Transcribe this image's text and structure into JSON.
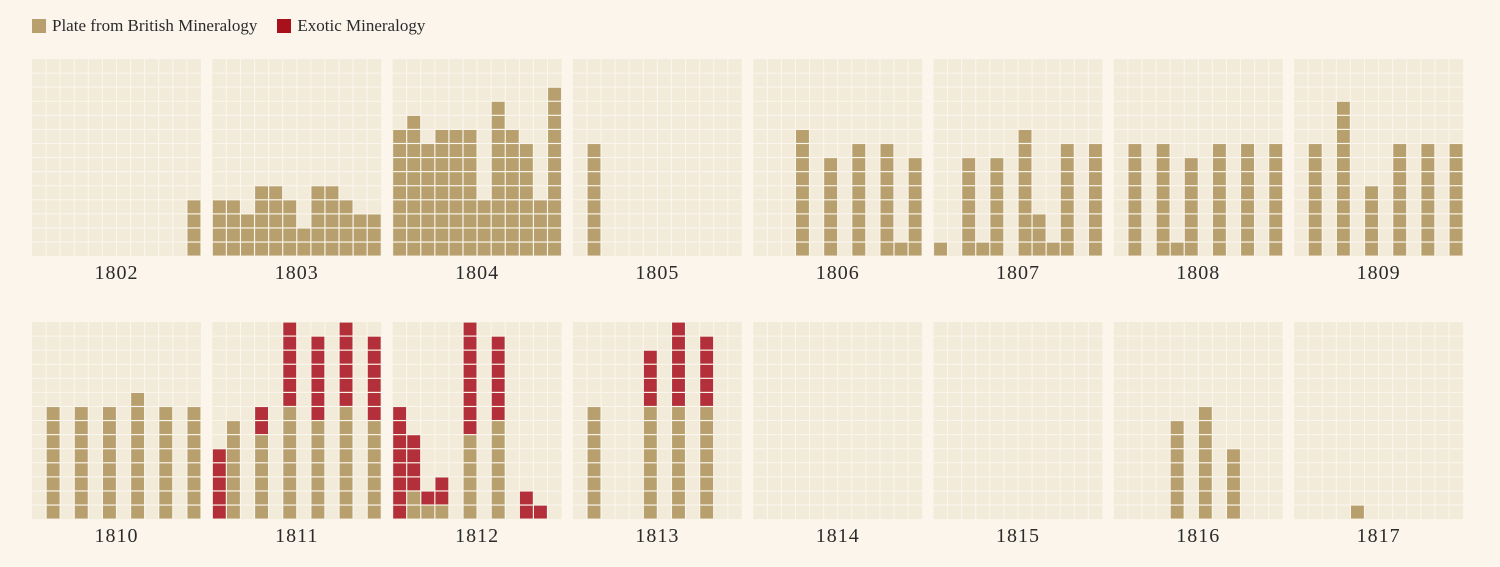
{
  "legend": {
    "british_label": "Plate from British Mineralogy",
    "exotic_label": "Exotic Mineralogy"
  },
  "colors": {
    "background": "#fbf5ec",
    "panel": "#f3ebda",
    "grid_line": "#fbf6ed",
    "british": "#b8a06e",
    "exotic": "#b3303a",
    "exotic_legend": "#a8111c"
  },
  "chart_data": {
    "type": "bar",
    "grid": true,
    "legend_position": "top-left",
    "units_per_panel_max": 14,
    "series": [
      {
        "name": "Plate from British Mineralogy"
      },
      {
        "name": "Exotic Mineralogy"
      }
    ],
    "panels": [
      {
        "year": "1802",
        "british": [
          0,
          0,
          0,
          0,
          0,
          0,
          0,
          0,
          0,
          0,
          0,
          4
        ],
        "exotic": [
          0,
          0,
          0,
          0,
          0,
          0,
          0,
          0,
          0,
          0,
          0,
          0
        ]
      },
      {
        "year": "1803",
        "british": [
          4,
          4,
          3,
          5,
          5,
          4,
          2,
          5,
          5,
          4,
          3,
          3
        ],
        "exotic": [
          0,
          0,
          0,
          0,
          0,
          0,
          0,
          0,
          0,
          0,
          0,
          0
        ]
      },
      {
        "year": "1804",
        "british": [
          9,
          10,
          8,
          9,
          9,
          9,
          4,
          11,
          9,
          8,
          4,
          12
        ],
        "exotic": [
          0,
          0,
          0,
          0,
          0,
          0,
          0,
          0,
          0,
          0,
          0,
          0
        ]
      },
      {
        "year": "1805",
        "british": [
          0,
          8,
          0,
          0,
          0,
          0,
          0,
          0,
          0,
          0,
          0,
          0
        ],
        "exotic": [
          0,
          0,
          0,
          0,
          0,
          0,
          0,
          0,
          0,
          0,
          0,
          0
        ]
      },
      {
        "year": "1806",
        "british": [
          0,
          0,
          0,
          9,
          0,
          7,
          0,
          8,
          0,
          8,
          1,
          7
        ],
        "exotic": [
          0,
          0,
          0,
          0,
          0,
          0,
          0,
          0,
          0,
          0,
          0,
          0
        ]
      },
      {
        "year": "1807",
        "british": [
          1,
          0,
          7,
          1,
          7,
          0,
          9,
          3,
          1,
          8,
          0,
          8
        ],
        "exotic": [
          0,
          0,
          0,
          0,
          0,
          0,
          0,
          0,
          0,
          0,
          0,
          0
        ]
      },
      {
        "year": "1808",
        "british": [
          0,
          8,
          0,
          8,
          1,
          7,
          0,
          8,
          0,
          8,
          0,
          8
        ],
        "exotic": [
          0,
          0,
          0,
          0,
          0,
          0,
          0,
          0,
          0,
          0,
          0,
          0
        ]
      },
      {
        "year": "1809",
        "british": [
          0,
          8,
          0,
          11,
          0,
          5,
          0,
          8,
          0,
          8,
          0,
          8
        ],
        "exotic": [
          0,
          0,
          0,
          0,
          0,
          0,
          0,
          0,
          0,
          0,
          0,
          0
        ]
      },
      {
        "year": "1810",
        "british": [
          0,
          8,
          0,
          8,
          0,
          8,
          0,
          9,
          0,
          8,
          0,
          8
        ],
        "exotic": [
          0,
          0,
          0,
          0,
          0,
          0,
          0,
          0,
          0,
          0,
          0,
          0
        ]
      },
      {
        "year": "1811",
        "british": [
          0,
          7,
          0,
          6,
          0,
          8,
          0,
          7,
          0,
          8,
          0,
          7
        ],
        "exotic": [
          5,
          0,
          0,
          2,
          0,
          6,
          0,
          6,
          0,
          6,
          0,
          6
        ]
      },
      {
        "year": "1812",
        "british": [
          0,
          2,
          1,
          1,
          0,
          6,
          0,
          7,
          0,
          0,
          0,
          0
        ],
        "exotic": [
          8,
          4,
          1,
          2,
          0,
          8,
          0,
          6,
          0,
          2,
          1,
          0
        ]
      },
      {
        "year": "1813",
        "british": [
          0,
          8,
          0,
          0,
          0,
          8,
          0,
          8,
          0,
          8,
          0,
          0
        ],
        "exotic": [
          0,
          0,
          0,
          0,
          0,
          4,
          0,
          6,
          0,
          5,
          0,
          0
        ]
      },
      {
        "year": "1814",
        "british": [
          0,
          0,
          0,
          0,
          0,
          0,
          0,
          0,
          0,
          0,
          0,
          0
        ],
        "exotic": [
          0,
          0,
          0,
          0,
          0,
          0,
          0,
          0,
          0,
          0,
          0,
          0
        ]
      },
      {
        "year": "1815",
        "british": [
          0,
          0,
          0,
          0,
          0,
          0,
          0,
          0,
          0,
          0,
          0,
          0
        ],
        "exotic": [
          0,
          0,
          0,
          0,
          0,
          0,
          0,
          0,
          0,
          0,
          0,
          0
        ]
      },
      {
        "year": "1816",
        "british": [
          0,
          0,
          0,
          0,
          7,
          0,
          8,
          0,
          5,
          0,
          0,
          0
        ],
        "exotic": [
          0,
          0,
          0,
          0,
          0,
          0,
          0,
          0,
          0,
          0,
          0,
          0
        ]
      },
      {
        "year": "1817",
        "british": [
          0,
          0,
          0,
          0,
          1,
          0,
          0,
          0,
          0,
          0,
          0,
          0
        ],
        "exotic": [
          0,
          0,
          0,
          0,
          0,
          0,
          0,
          0,
          0,
          0,
          0,
          0
        ]
      }
    ]
  }
}
